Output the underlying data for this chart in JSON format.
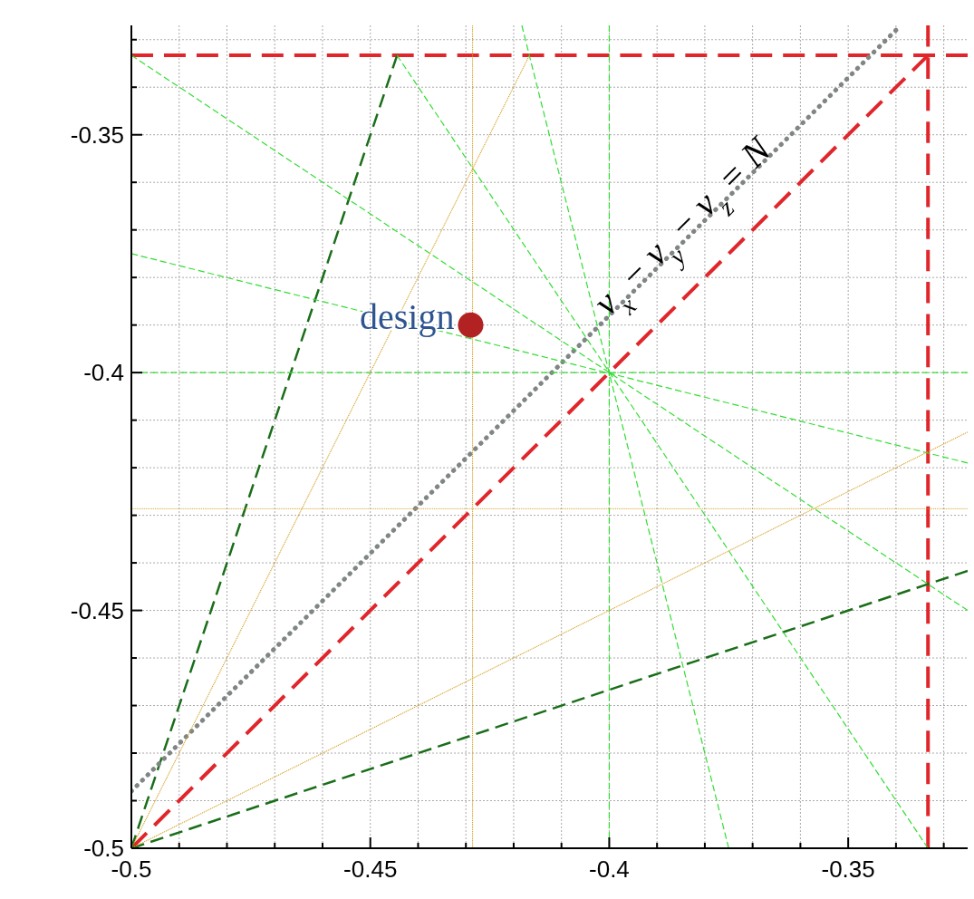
{
  "chart_data": {
    "type": "line",
    "xlim": [
      -0.5,
      -0.325
    ],
    "ylim": [
      -0.5,
      -0.327
    ],
    "xticks": [
      -0.5,
      {
        "value": -0.49,
        "label": null
      },
      {
        "value": -0.48,
        "label": null
      },
      {
        "value": -0.47,
        "label": null
      },
      {
        "value": -0.46,
        "label": null
      },
      -0.45,
      {
        "value": -0.44,
        "label": null
      },
      {
        "value": -0.43,
        "label": null
      },
      {
        "value": -0.42,
        "label": null
      },
      {
        "value": -0.41,
        "label": null
      },
      -0.4,
      {
        "value": -0.39,
        "label": null
      },
      {
        "value": -0.38,
        "label": null
      },
      {
        "value": -0.37,
        "label": null
      },
      {
        "value": -0.36,
        "label": null
      },
      -0.35,
      {
        "value": -0.34,
        "label": null
      },
      {
        "value": -0.33,
        "label": null
      }
    ],
    "yticks": [
      -0.5,
      {
        "value": -0.49,
        "label": null
      },
      {
        "value": -0.48,
        "label": null
      },
      {
        "value": -0.47,
        "label": null
      },
      {
        "value": -0.46,
        "label": null
      },
      -0.45,
      {
        "value": -0.44,
        "label": null
      },
      {
        "value": -0.43,
        "label": null
      },
      {
        "value": -0.42,
        "label": null
      },
      {
        "value": -0.41,
        "label": null
      },
      -0.4,
      {
        "value": -0.39,
        "label": null
      },
      {
        "value": -0.38,
        "label": null
      },
      {
        "value": -0.37,
        "label": null
      },
      {
        "value": -0.36,
        "label": null
      },
      -0.35,
      {
        "value": -0.34,
        "label": null
      },
      {
        "value": -0.33,
        "label": null
      }
    ],
    "grid": true,
    "series": [
      {
        "color": "#e0262b",
        "line_style": "dashed",
        "x": [
          -0.5,
          -0.3333
        ],
        "values": [
          -0.5,
          -0.3333
        ]
      },
      {
        "color": "#e0262b",
        "line_style": "dashed",
        "x": [
          -0.5,
          -0.325
        ],
        "values": [
          -0.3333,
          -0.3333
        ]
      },
      {
        "color": "#e0262b",
        "line_style": "dashed",
        "x": [
          -0.3333,
          -0.3333
        ],
        "values": [
          -0.5,
          -0.327
        ]
      },
      {
        "color": "#1a6e1a",
        "line_style": "dashed",
        "x": [
          -0.5,
          -0.4444
        ],
        "values": [
          -0.5,
          -0.3333
        ]
      },
      {
        "color": "#1a6e1a",
        "line_style": "dashed",
        "x": [
          -0.5,
          -0.325
        ],
        "values": [
          -0.5,
          -0.4417
        ]
      },
      {
        "color": "#808585",
        "line_style": "dotted",
        "x": [
          -0.5,
          -0.339
        ],
        "values": [
          -0.488,
          -0.327
        ]
      },
      {
        "color": "#33dd33",
        "line_style": "dashed",
        "x": [
          -0.5,
          -0.325
        ],
        "values": [
          -0.4,
          -0.4
        ]
      },
      {
        "color": "#33dd33",
        "line_style": "dashed",
        "x": [
          -0.4,
          -0.4
        ],
        "values": [
          -0.5,
          -0.327
        ]
      },
      {
        "color": "#33dd33",
        "line_style": "dashed",
        "x": [
          -0.5,
          -0.325
        ],
        "values": [
          -0.375,
          -0.419
        ]
      },
      {
        "color": "#33dd33",
        "line_style": "dashed",
        "x": [
          -0.4183,
          -0.375
        ],
        "values": [
          -0.327,
          -0.5
        ]
      },
      {
        "color": "#33dd33",
        "line_style": "dashed",
        "x": [
          -0.4444,
          -0.3333
        ],
        "values": [
          -0.3333,
          -0.5
        ]
      },
      {
        "color": "#33dd33",
        "line_style": "dashed",
        "x": [
          -0.5,
          -0.325
        ],
        "values": [
          -0.3333,
          -0.45
        ]
      },
      {
        "color": "#d4a020",
        "line_style": "dotted",
        "x": [
          -0.4286,
          -0.4286
        ],
        "values": [
          -0.5,
          -0.327
        ]
      },
      {
        "color": "#d4a020",
        "line_style": "dotted",
        "x": [
          -0.5,
          -0.325
        ],
        "values": [
          -0.4286,
          -0.4286
        ]
      },
      {
        "color": "#d4a020",
        "line_style": "dotted",
        "x": [
          -0.5,
          -0.325
        ],
        "values": [
          -0.5,
          -0.4125
        ]
      },
      {
        "color": "#d4a020",
        "line_style": "dotted",
        "x": [
          -0.5,
          -0.4167
        ],
        "values": [
          -0.5,
          -0.3333
        ]
      },
      {
        "type": "scatter",
        "color": "#b22222",
        "marker": "circle",
        "x": [
          -0.429
        ],
        "values": [
          -0.39
        ]
      }
    ],
    "annotations": [
      {
        "text": "design",
        "x": -0.429,
        "y": -0.39
      },
      {
        "text": "ν$_{x}$ − ν$_{y}$ − ν$_{z}$ = N",
        "x": -0.383,
        "y": -0.371
      }
    ]
  }
}
